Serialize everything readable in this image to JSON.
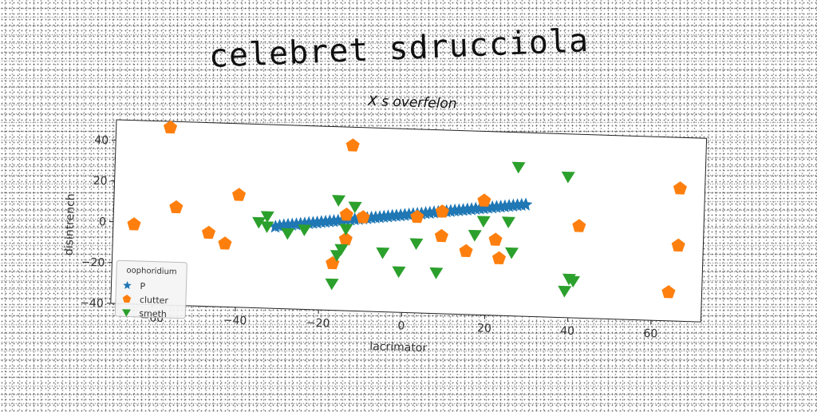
{
  "page": {
    "title": "celebret sdrucciola"
  },
  "chart_data": {
    "type": "scatter",
    "title": "X s overfelon",
    "xlabel": "lacrimator",
    "ylabel": "disintrench",
    "xlim": [
      -70,
      72
    ],
    "ylim": [
      -40,
      50
    ],
    "xticks": [
      -60,
      -40,
      -20,
      0,
      20,
      40,
      60
    ],
    "yticks": [
      -40,
      -20,
      0,
      20,
      40
    ],
    "grid": false,
    "legend": {
      "title": "oophoridium",
      "placement": "lower-left"
    },
    "series": [
      {
        "name": "P",
        "marker": "star",
        "color": "#1f77b4",
        "points": [
          [
            -31,
            0
          ],
          [
            -30,
            0.5
          ],
          [
            -29,
            0.8
          ],
          [
            -28,
            1.1
          ],
          [
            -27,
            1.3
          ],
          [
            -26,
            1.5
          ],
          [
            -25,
            1.8
          ],
          [
            -24,
            2.0
          ],
          [
            -23,
            2.3
          ],
          [
            -22,
            2.5
          ],
          [
            -21,
            2.7
          ],
          [
            -20,
            3.0
          ],
          [
            -19,
            3.2
          ],
          [
            -18,
            3.5
          ],
          [
            -17,
            3.7
          ],
          [
            -16,
            3.9
          ],
          [
            -15,
            4.2
          ],
          [
            -14,
            4.4
          ],
          [
            -13,
            4.7
          ],
          [
            -12,
            4.9
          ],
          [
            -11,
            5.1
          ],
          [
            -10,
            5.4
          ],
          [
            -9,
            5.6
          ],
          [
            -8,
            5.9
          ],
          [
            -7,
            6.1
          ],
          [
            -6,
            6.3
          ],
          [
            -5,
            6.6
          ],
          [
            -4,
            6.8
          ],
          [
            -3,
            7.1
          ],
          [
            -2,
            7.3
          ],
          [
            -1,
            7.5
          ],
          [
            0,
            7.8
          ],
          [
            1,
            8.0
          ],
          [
            2,
            8.3
          ],
          [
            3,
            8.5
          ],
          [
            4,
            8.7
          ],
          [
            5,
            9.0
          ],
          [
            6,
            9.2
          ],
          [
            7,
            9.5
          ],
          [
            8,
            9.7
          ],
          [
            9,
            9.9
          ],
          [
            10,
            10.2
          ],
          [
            11,
            10.4
          ],
          [
            12,
            10.7
          ],
          [
            13,
            10.9
          ],
          [
            14,
            11.1
          ],
          [
            15,
            11.4
          ],
          [
            16,
            11.6
          ],
          [
            17,
            11.9
          ],
          [
            18,
            12.1
          ],
          [
            19,
            12.3
          ],
          [
            20,
            12.6
          ],
          [
            21,
            12.8
          ],
          [
            22,
            13.1
          ],
          [
            23,
            13.3
          ],
          [
            24,
            13.5
          ],
          [
            25,
            13.8
          ],
          [
            26,
            14.0
          ],
          [
            27,
            14.3
          ],
          [
            28,
            14.5
          ],
          [
            29,
            14.7
          ]
        ]
      },
      {
        "name": "clutter",
        "marker": "pentagon",
        "color": "#ff7f0e",
        "points": [
          [
            -57,
            47
          ],
          [
            -55,
            8
          ],
          [
            -65,
            -1
          ],
          [
            -47,
            -4
          ],
          [
            -43,
            -9
          ],
          [
            -40,
            15
          ],
          [
            -13,
            41
          ],
          [
            -14,
            7
          ],
          [
            -10,
            6
          ],
          [
            -14,
            -5
          ],
          [
            -17,
            -17
          ],
          [
            3,
            7
          ],
          [
            9,
            10
          ],
          [
            9,
            -2
          ],
          [
            15,
            -9
          ],
          [
            19,
            16
          ],
          [
            22,
            -3
          ],
          [
            23,
            -12
          ],
          [
            42,
            5
          ],
          [
            66,
            25
          ],
          [
            66,
            -3
          ],
          [
            64,
            -26
          ]
        ]
      },
      {
        "name": "smeth",
        "marker": "triangle-down",
        "color": "#2ca02c",
        "points": [
          [
            -33,
            5
          ],
          [
            -35,
            2
          ],
          [
            -33,
            0
          ],
          [
            -28,
            -3
          ],
          [
            -24,
            -1
          ],
          [
            -16,
            14
          ],
          [
            -12,
            11
          ],
          [
            -14,
            0
          ],
          [
            -15,
            -10
          ],
          [
            -16,
            -13
          ],
          [
            -17,
            -27
          ],
          [
            -5,
            -11
          ],
          [
            -1,
            -20
          ],
          [
            3,
            -6
          ],
          [
            8,
            -20
          ],
          [
            17,
            -1
          ],
          [
            19,
            6
          ],
          [
            25,
            6
          ],
          [
            26,
            -9
          ],
          [
            27,
            33
          ],
          [
            39,
            29
          ],
          [
            39,
            -27
          ],
          [
            40,
            -21
          ],
          [
            41,
            -22
          ]
        ]
      }
    ]
  }
}
